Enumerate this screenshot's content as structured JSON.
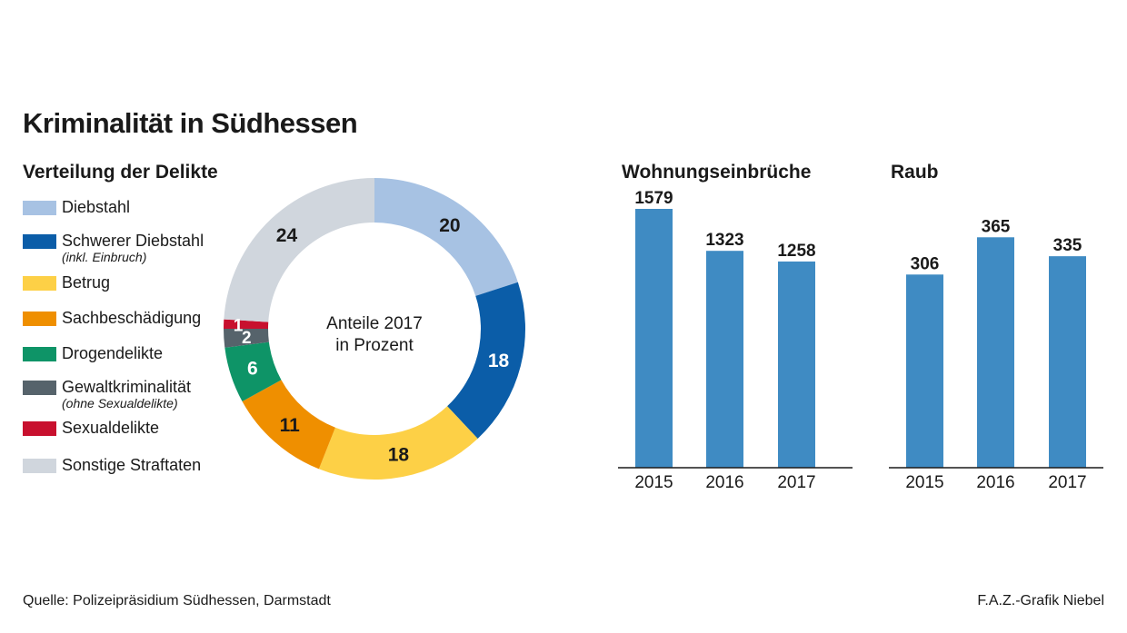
{
  "title": "Kriminalität in Südhessen",
  "subtitle": "Verteilung der Delikte",
  "source": "Quelle:  Polizeipräsidium Südhessen, Darmstadt",
  "credit": "F.A.Z.-Grafik Niebel",
  "legend": [
    {
      "label": "Diebstahl",
      "note": "",
      "color": "#a7c2e3"
    },
    {
      "label": "Schwerer Diebstahl",
      "note": "(inkl. Einbruch)",
      "color": "#0b5da8"
    },
    {
      "label": "Betrug",
      "note": "",
      "color": "#fdd046"
    },
    {
      "label": "Sachbeschädigung",
      "note": "",
      "color": "#ef8f00"
    },
    {
      "label": "Drogendelikte",
      "note": "",
      "color": "#0e9467"
    },
    {
      "label": "Gewaltkriminalität",
      "note": "(ohne Sexualdelikte)",
      "color": "#56636b"
    },
    {
      "label": "Sexualdelikte",
      "note": "",
      "color": "#c8102e"
    },
    {
      "label": "Sonstige Straftaten",
      "note": "",
      "color": "#d0d6dd"
    }
  ],
  "bar_titles": [
    "Wohnungseinbrüche",
    "Raub"
  ],
  "chart_data": [
    {
      "type": "pie",
      "donut": true,
      "center_label": [
        "Anteile 2017",
        "in Prozent"
      ],
      "categories": [
        "Diebstahl",
        "Schwerer Diebstahl",
        "Betrug",
        "Sachbeschädigung",
        "Drogendelikte",
        "Gewaltkriminalität",
        "Sexualdelikte",
        "Sonstige Straftaten"
      ],
      "values": [
        20,
        18,
        18,
        11,
        6,
        2,
        1,
        24
      ],
      "colors": [
        "#a7c2e3",
        "#0b5da8",
        "#fdd046",
        "#ef8f00",
        "#0e9467",
        "#56636b",
        "#c8102e",
        "#d0d6dd"
      ],
      "label_colors": [
        "#1a1a1a",
        "#ffffff",
        "#1a1a1a",
        "#1a1a1a",
        "#ffffff",
        "#ffffff",
        "#ffffff",
        "#1a1a1a"
      ]
    },
    {
      "type": "bar",
      "title": "Wohnungseinbrüche",
      "categories": [
        "2015",
        "2016",
        "2017"
      ],
      "values": [
        1579,
        1323,
        1258
      ],
      "ylim": [
        0,
        1579
      ],
      "color": "#3f8bc3"
    },
    {
      "type": "bar",
      "title": "Raub",
      "categories": [
        "2015",
        "2016",
        "2017"
      ],
      "values": [
        306,
        365,
        335
      ],
      "ylim": [
        0,
        410
      ],
      "color": "#3f8bc3"
    }
  ]
}
